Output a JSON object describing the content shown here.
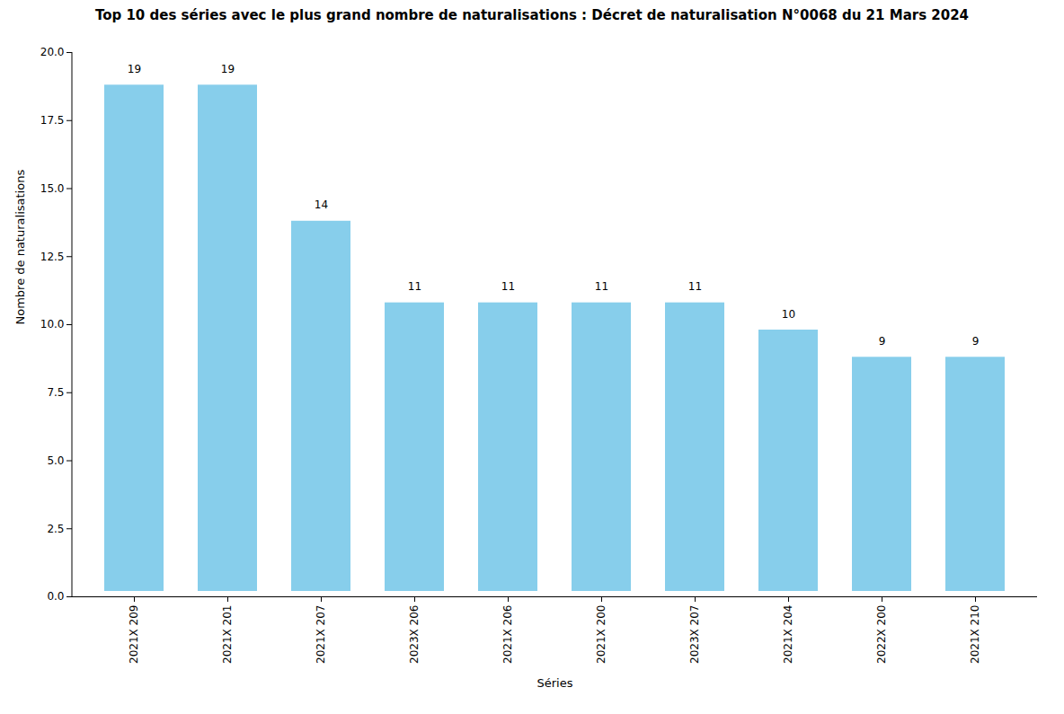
{
  "chart_data": {
    "type": "bar",
    "title": "Top 10 des séries avec le plus grand nombre de naturalisations : Décret de naturalisation N°0068 du 21 Mars 2024",
    "xlabel": "Séries",
    "ylabel": "Nombre de naturalisations",
    "categories": [
      "2021X 209",
      "2021X 201",
      "2021X 207",
      "2023X 206",
      "2021X 206",
      "2021X 200",
      "2023X 207",
      "2021X 204",
      "2022X 200",
      "2021X 210"
    ],
    "values": [
      19,
      19,
      14,
      11,
      11,
      11,
      11,
      10,
      9,
      9
    ],
    "color": "#87CEEB",
    "ylim": [
      0,
      20
    ],
    "yticks": [
      {
        "value": 0,
        "label": "0.0"
      },
      2.5,
      {
        "value": 5,
        "label": "5.0"
      },
      7.5,
      {
        "value": 10,
        "label": "10.0"
      },
      12.5,
      {
        "value": 15,
        "label": "15.0"
      },
      17.5,
      {
        "value": 20,
        "label": "20.0"
      }
    ],
    "data_labels": true,
    "grid": false
  }
}
